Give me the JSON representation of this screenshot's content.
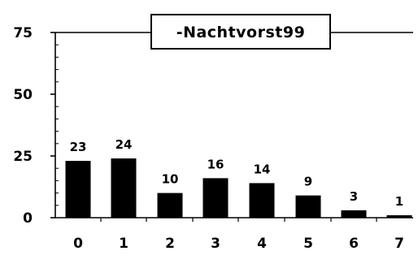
{
  "chart_data": {
    "type": "bar",
    "title": "-Nachtvorst99",
    "xlabel": "",
    "ylabel": "",
    "categories": [
      "0",
      "1",
      "2",
      "3",
      "4",
      "5",
      "6",
      "7"
    ],
    "values": [
      23,
      24,
      10,
      16,
      14,
      9,
      3,
      1
    ],
    "data_labels": [
      "23",
      "24",
      "10",
      "16",
      "14",
      "9",
      "3",
      "1"
    ],
    "ylim": [
      0,
      75
    ],
    "yticks": [
      0,
      25,
      50,
      75
    ],
    "ytick_labels": [
      "0",
      "25",
      "50",
      "75"
    ],
    "grid": false,
    "legend": "none",
    "title_position": "top-center, boxed",
    "bar_color": "#000000"
  }
}
